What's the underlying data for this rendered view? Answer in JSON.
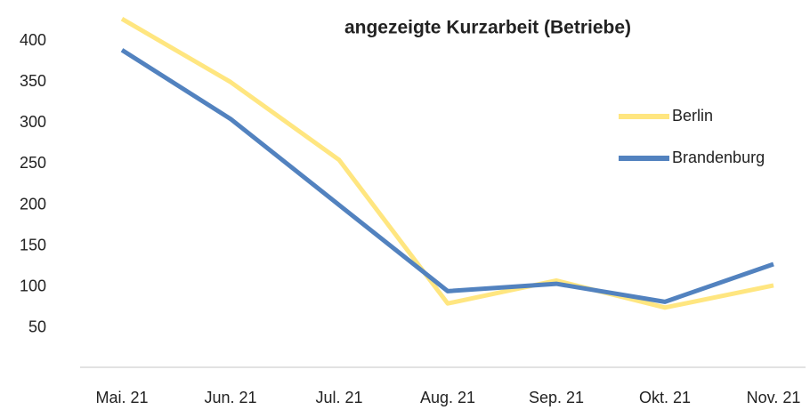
{
  "chart_data": {
    "type": "line",
    "title": "angezeigte Kurzarbeit (Betriebe)",
    "categories": [
      "Mai. 21",
      "Jun. 21",
      "Jul. 21",
      "Aug. 21",
      "Sep. 21",
      "Okt. 21",
      "Nov. 21"
    ],
    "series": [
      {
        "name": "Berlin",
        "color": "#ffe680",
        "values": [
          427,
          350,
          255,
          80,
          108,
          75,
          102
        ]
      },
      {
        "name": "Brandenburg",
        "color": "#5282bf",
        "values": [
          389,
          305,
          200,
          95,
          104,
          82,
          128
        ]
      }
    ],
    "ylim": [
      0,
      450
    ],
    "yticks": [
      50,
      100,
      150,
      200,
      250,
      300,
      350,
      400
    ],
    "grid": false,
    "legend": "right"
  }
}
